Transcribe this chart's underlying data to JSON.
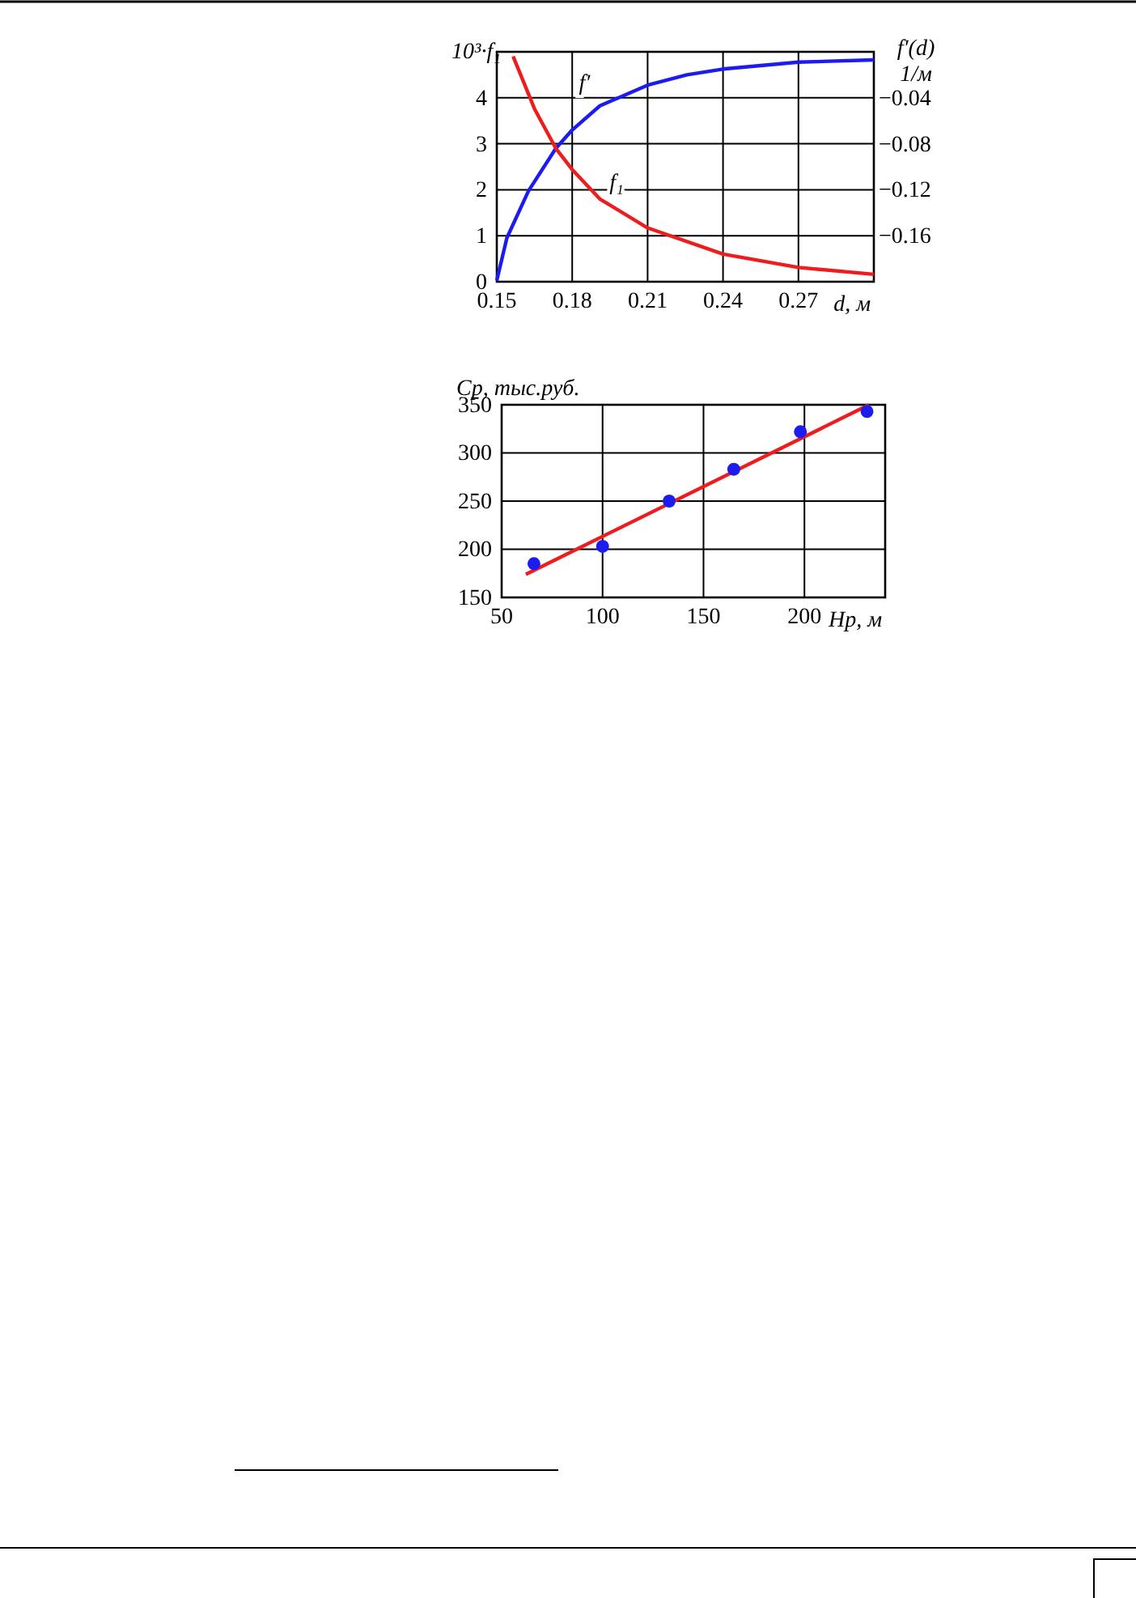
{
  "chart_data": [
    {
      "type": "line",
      "xlabel": "d, м",
      "ylabel": "10³·f₁",
      "y2label": "f′(d) 1/м",
      "grid": true,
      "xlim": [
        0.15,
        0.3
      ],
      "xticks": [
        0.15,
        0.18,
        0.21,
        0.24,
        0.27
      ],
      "ylim": [
        0,
        5
      ],
      "yticks": [
        0,
        1,
        2,
        3,
        4
      ],
      "y2lim": [
        -0.2,
        0
      ],
      "y2ticks": [
        {
          "value": -0.04,
          "label": "−0.04"
        },
        {
          "value": -0.08,
          "label": "−0.08"
        },
        {
          "value": -0.12,
          "label": "−0.12"
        },
        {
          "value": -0.16,
          "label": "−0.16"
        }
      ],
      "series": [
        {
          "name": "f′",
          "color": "#1c1cf0",
          "axis": "y2",
          "x": [
            0.15,
            0.154,
            0.1626,
            0.1735,
            0.18,
            0.191,
            0.21,
            0.2257,
            0.24,
            0.27,
            0.3
          ],
          "values": [
            -0.199,
            -0.162,
            -0.121,
            -0.084,
            -0.068,
            -0.047,
            -0.029,
            -0.02,
            -0.015,
            -0.009,
            -0.007
          ]
        },
        {
          "name": "f₁",
          "color": "#ee1c1c",
          "x": [
            0.1565,
            0.165,
            0.1735,
            0.18,
            0.191,
            0.21,
            0.24,
            0.27,
            0.3
          ],
          "values": [
            4.9,
            3.76,
            2.9,
            2.44,
            1.8,
            1.17,
            0.6,
            0.31,
            0.16
          ]
        }
      ]
    },
    {
      "type": "scatter",
      "xlabel": "Hp, м",
      "ylabel": "Cp,  тыс.руб.",
      "grid": true,
      "xlim": [
        50,
        240
      ],
      "xticks": [
        50,
        100,
        150,
        200
      ],
      "ylim": [
        150,
        350
      ],
      "yticks": [
        150,
        200,
        250,
        300,
        350
      ],
      "series": [
        {
          "type": "line",
          "color": "#ee1c1c",
          "x": [
            62,
            232
          ],
          "values": [
            174,
            350
          ]
        },
        {
          "color": "#1c1cf0",
          "marker": "circle",
          "x": [
            66,
            100,
            133,
            165,
            198,
            231
          ],
          "values": [
            185,
            203,
            250,
            283,
            322,
            343
          ]
        }
      ]
    }
  ]
}
